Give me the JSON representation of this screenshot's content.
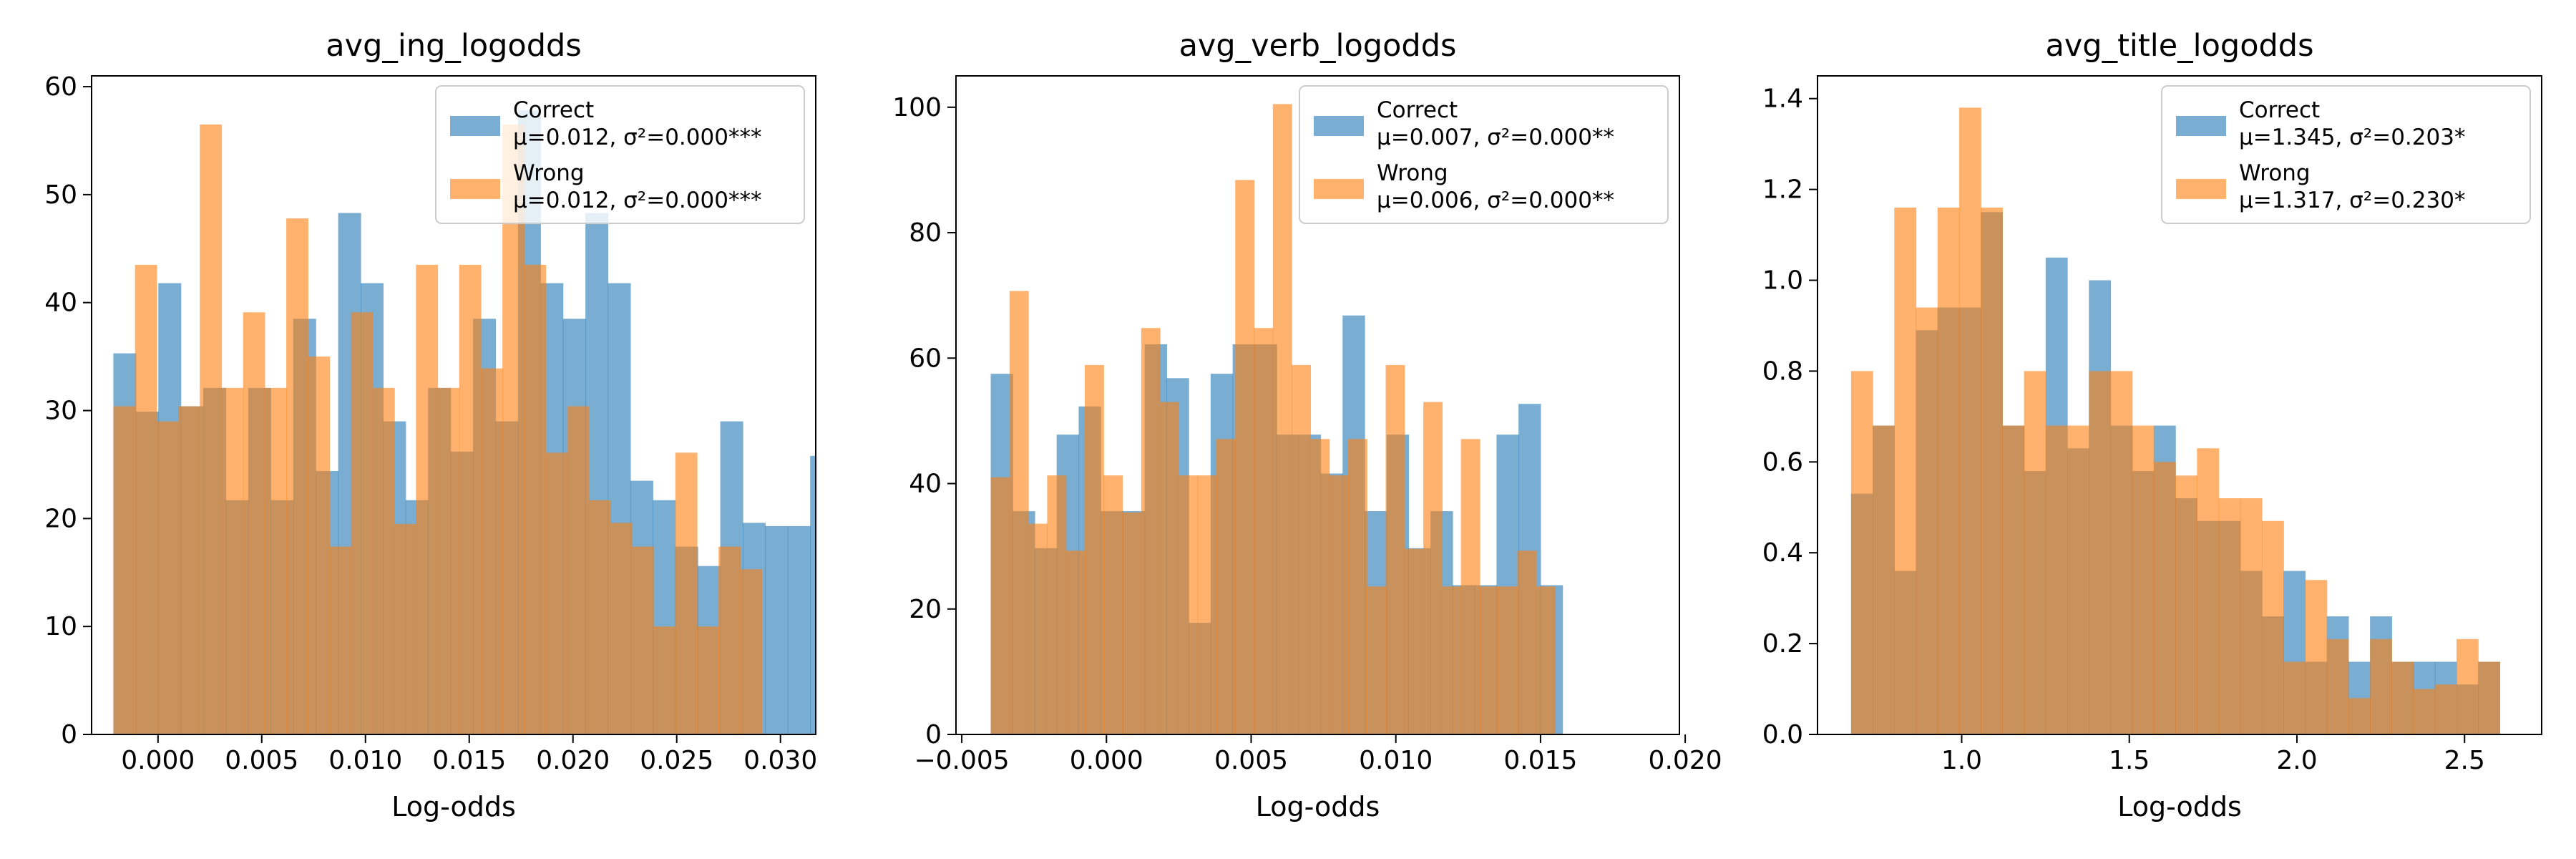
{
  "colors": {
    "correct": "#1f77b4",
    "wrong": "#ff7f0e",
    "bar_alpha": 0.6,
    "axis": "#000000",
    "legend_edge": "#cccccc"
  },
  "chart_data": [
    {
      "type": "histogram",
      "title": "avg_ing_logodds",
      "xlabel": "Log-odds",
      "ylabel": "",
      "xlim": [
        -0.0032,
        0.0317
      ],
      "ylim": [
        0,
        61
      ],
      "xticks": [
        0.0,
        0.005,
        0.01,
        0.015,
        0.02,
        0.025,
        0.03
      ],
      "xtick_labels": [
        "0.000",
        "0.005",
        "0.010",
        "0.015",
        "0.020",
        "0.025",
        "0.030"
      ],
      "yticks": [
        0,
        10,
        20,
        30,
        40,
        50,
        60
      ],
      "ytick_labels": [
        "0",
        "10",
        "20",
        "30",
        "40",
        "50",
        "60"
      ],
      "legend_position": "upper right",
      "series": [
        {
          "name": "Correct",
          "stats": "μ=0.012, σ²=0.000***",
          "bin_start": -0.00215,
          "bin_width": 0.0010833,
          "values": [
            35.3,
            29.9,
            41.8,
            30.4,
            32.1,
            21.7,
            32.1,
            21.7,
            38.5,
            24.4,
            48.3,
            41.8,
            29.0,
            21.7,
            32.1,
            26.2,
            38.5,
            29.0,
            57.8,
            41.8,
            38.5,
            48.3,
            41.8,
            23.5,
            21.7,
            17.4,
            15.6,
            29.0,
            19.6,
            19.3,
            19.3,
            25.8,
            9.6
          ]
        },
        {
          "name": "Wrong",
          "stats": "μ=0.012, σ²=0.000***",
          "bin_start": -0.00215,
          "bin_width": 0.0010417,
          "values": [
            30.4,
            43.5,
            29.0,
            30.4,
            56.5,
            32.1,
            39.1,
            32.1,
            47.8,
            35.0,
            17.4,
            39.1,
            32.1,
            19.5,
            43.5,
            32.1,
            43.5,
            33.9,
            56.5,
            43.5,
            26.1,
            30.4,
            21.7,
            19.6,
            17.4,
            10.0,
            26.1,
            10.0,
            17.4,
            15.3
          ]
        }
      ]
    },
    {
      "type": "histogram",
      "title": "avg_verb_logodds",
      "xlabel": "Log-odds",
      "ylabel": "",
      "xlim": [
        -0.0052,
        0.0198
      ],
      "ylim": [
        0,
        105
      ],
      "xticks": [
        -0.005,
        0.0,
        0.005,
        0.01,
        0.015,
        0.02
      ],
      "xtick_labels": [
        "−0.005",
        "0.000",
        "0.005",
        "0.010",
        "0.015",
        "0.020"
      ],
      "yticks": [
        0,
        20,
        40,
        60,
        80,
        100
      ],
      "ytick_labels": [
        "0",
        "20",
        "40",
        "60",
        "80",
        "100"
      ],
      "legend_position": "upper right",
      "series": [
        {
          "name": "Correct",
          "stats": "μ=0.007, σ²=0.000**",
          "bin_start": -0.004,
          "bin_width": 0.00076,
          "values": [
            57.5,
            35.6,
            29.7,
            47.8,
            52.3,
            35.6,
            35.6,
            62.2,
            56.8,
            17.8,
            57.5,
            62.2,
            62.2,
            47.8,
            47.8,
            41.6,
            66.8,
            35.6,
            47.8,
            29.7,
            35.6,
            23.8,
            23.8,
            47.8,
            52.7,
            23.8
          ]
        },
        {
          "name": "Wrong",
          "stats": "μ=0.006, σ²=0.000**",
          "bin_start": -0.004,
          "bin_width": 0.00065,
          "values": [
            41.0,
            70.7,
            33.6,
            41.3,
            29.3,
            58.9,
            41.3,
            35.4,
            64.8,
            53.0,
            41.3,
            41.3,
            47.1,
            88.4,
            64.8,
            100.5,
            58.9,
            47.1,
            41.3,
            47.1,
            23.6,
            58.9,
            29.6,
            53.0,
            23.6,
            47.1,
            23.6,
            23.6,
            29.3,
            23.6
          ]
        }
      ]
    },
    {
      "type": "histogram",
      "title": "avg_title_logodds",
      "xlabel": "Log-odds",
      "ylabel": "",
      "xlim": [
        0.57,
        2.73
      ],
      "ylim": [
        0,
        1.45
      ],
      "xticks": [
        1.0,
        1.5,
        2.0,
        2.5
      ],
      "xtick_labels": [
        "1.0",
        "1.5",
        "2.0",
        "2.5"
      ],
      "yticks": [
        0,
        0.2,
        0.4,
        0.6,
        0.8,
        1.0,
        1.2,
        1.4
      ],
      "ytick_labels": [
        "0.0",
        "0.2",
        "0.4",
        "0.6",
        "0.8",
        "1.0",
        "1.2",
        "1.4"
      ],
      "legend_position": "upper right",
      "series": [
        {
          "name": "Correct",
          "stats": "μ=1.345, σ²=0.203*",
          "bin_start": 0.67,
          "bin_width": 0.0645,
          "values": [
            0.53,
            0.68,
            0.36,
            0.89,
            0.94,
            0.94,
            1.15,
            0.68,
            0.58,
            1.05,
            0.63,
            1.0,
            0.68,
            0.58,
            0.68,
            0.52,
            0.47,
            0.47,
            0.36,
            0.26,
            0.36,
            0.16,
            0.26,
            0.16,
            0.26,
            0.16,
            0.16,
            0.16,
            0.11,
            0.16
          ]
        },
        {
          "name": "Wrong",
          "stats": "μ=1.317, σ²=0.230*",
          "bin_start": 0.67,
          "bin_width": 0.0645,
          "values": [
            0.8,
            0.68,
            1.16,
            0.94,
            1.16,
            1.38,
            1.16,
            0.68,
            0.8,
            0.68,
            0.68,
            0.8,
            0.8,
            0.68,
            0.6,
            0.57,
            0.63,
            0.52,
            0.52,
            0.47,
            0.16,
            0.34,
            0.21,
            0.08,
            0.21,
            0.16,
            0.1,
            0.11,
            0.21,
            0.16
          ]
        }
      ]
    }
  ]
}
